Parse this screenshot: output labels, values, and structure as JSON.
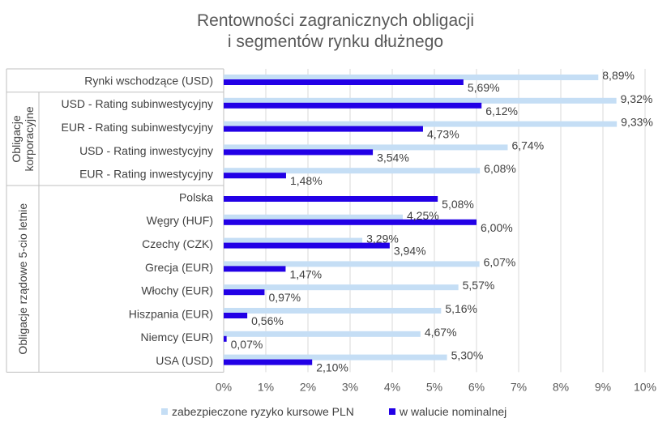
{
  "chart_data": {
    "type": "bar",
    "orientation": "horizontal",
    "title_lines": [
      "Rentowności zagranicznych obligacji",
      "i segmentów rynku dłużnego"
    ],
    "categories": [
      "Rynki wschodzące (USD)",
      "USD - Rating subinwestycyjny",
      "EUR - Rating subinwestycyjny",
      "USD - Rating inwestycyjny",
      "EUR - Rating inwestycyjny",
      "Polska",
      "Węgry (HUF)",
      "Czechy (CZK)",
      "Grecja (EUR)",
      "Włochy (EUR)",
      "Hiszpania (EUR)",
      "Niemcy (EUR)",
      "USA (USD)"
    ],
    "groups": [
      {
        "lines": [
          "Obligacje",
          "korporacyjne"
        ],
        "from": 1,
        "to": 4
      },
      {
        "lines": [
          "Obligacje rządowe 5-cio letnie"
        ],
        "from": 5,
        "to": 12
      }
    ],
    "series": [
      {
        "name": "zabezpieczone ryzyko kursowe PLN",
        "color": "#c5def5",
        "values": [
          8.89,
          9.32,
          9.33,
          6.74,
          6.08,
          null,
          4.25,
          3.29,
          6.07,
          5.57,
          5.16,
          4.67,
          5.3
        ],
        "labels": [
          "8,89%",
          "9,32%",
          "9,33%",
          "6,74%",
          "6,08%",
          "",
          "4,25%",
          "3,29%",
          "6,07%",
          "5,57%",
          "5,16%",
          "4,67%",
          "5,30%"
        ]
      },
      {
        "name": "w walucie nominalnej",
        "color": "#2200e6",
        "values": [
          5.69,
          6.12,
          4.73,
          3.54,
          1.48,
          5.08,
          6.0,
          3.94,
          1.47,
          0.97,
          0.56,
          0.07,
          2.1
        ],
        "labels": [
          "5,69%",
          "6,12%",
          "4,73%",
          "3,54%",
          "1,48%",
          "5,08%",
          "6,00%",
          "3,94%",
          "1,47%",
          "0,97%",
          "0,56%",
          "0,07%",
          "2,10%"
        ]
      }
    ],
    "xlim": [
      0,
      10
    ],
    "x_ticks": [
      "0%",
      "1%",
      "2%",
      "3%",
      "4%",
      "5%",
      "6%",
      "7%",
      "8%",
      "9%",
      "10%"
    ],
    "grid": "vertical",
    "legend_position": "bottom"
  }
}
